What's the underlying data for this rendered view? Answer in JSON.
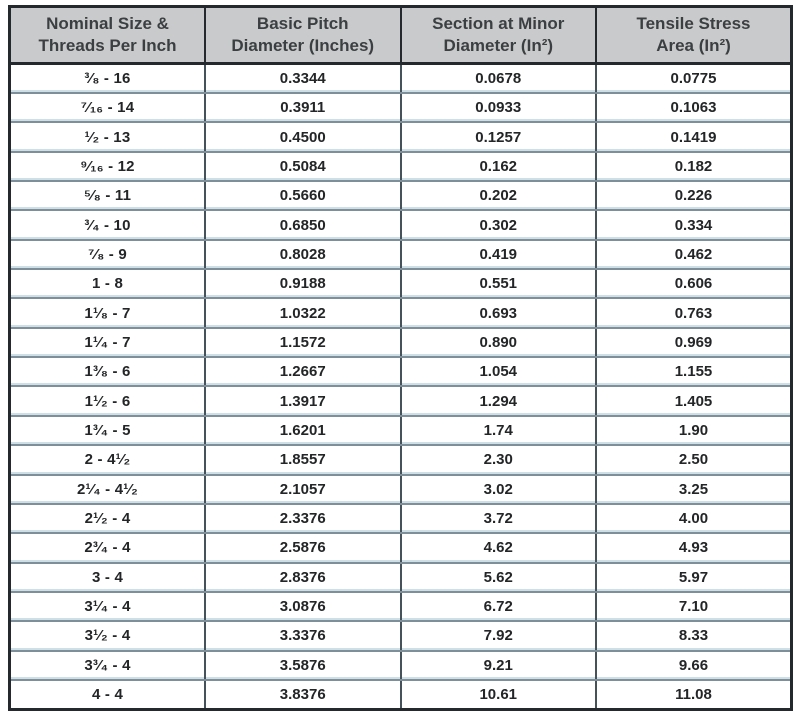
{
  "chart_data": {
    "type": "table",
    "columns": [
      "Nominal Size &\nThreads Per Inch",
      "Basic Pitch\nDiameter (Inches)",
      "Section at Minor\nDiameter (In²)",
      "Tensile Stress\nArea (In²)"
    ],
    "rows": [
      [
        "³⁄₈ - 16",
        "0.3344",
        "0.0678",
        "0.0775"
      ],
      [
        "⁷⁄₁₆ - 14",
        "0.3911",
        "0.0933",
        "0.1063"
      ],
      [
        "¹⁄₂ - 13",
        "0.4500",
        "0.1257",
        "0.1419"
      ],
      [
        "⁹⁄₁₆ - 12",
        "0.5084",
        "0.162",
        "0.182"
      ],
      [
        "⁵⁄₈ - 11",
        "0.5660",
        "0.202",
        "0.226"
      ],
      [
        "³⁄₄ - 10",
        "0.6850",
        "0.302",
        "0.334"
      ],
      [
        "⁷⁄₈ - 9",
        "0.8028",
        "0.419",
        "0.462"
      ],
      [
        "1 - 8",
        "0.9188",
        "0.551",
        "0.606"
      ],
      [
        "1¹⁄₈ - 7",
        "1.0322",
        "0.693",
        "0.763"
      ],
      [
        "1¹⁄₄ - 7",
        "1.1572",
        "0.890",
        "0.969"
      ],
      [
        "1³⁄₈ - 6",
        "1.2667",
        "1.054",
        "1.155"
      ],
      [
        "1¹⁄₂ - 6",
        "1.3917",
        "1.294",
        "1.405"
      ],
      [
        "1³⁄₄ - 5",
        "1.6201",
        "1.74",
        "1.90"
      ],
      [
        "2 - 4¹⁄₂",
        "1.8557",
        "2.30",
        "2.50"
      ],
      [
        "2¹⁄₄ - 4¹⁄₂",
        "2.1057",
        "3.02",
        "3.25"
      ],
      [
        "2¹⁄₂ - 4",
        "2.3376",
        "3.72",
        "4.00"
      ],
      [
        "2³⁄₄ - 4",
        "2.5876",
        "4.62",
        "4.93"
      ],
      [
        "3 - 4",
        "2.8376",
        "5.62",
        "5.97"
      ],
      [
        "3¹⁄₄ - 4",
        "3.0876",
        "6.72",
        "7.10"
      ],
      [
        "3¹⁄₂ - 4",
        "3.3376",
        "7.92",
        "8.33"
      ],
      [
        "3³⁄₄ - 4",
        "3.5876",
        "9.21",
        "9.66"
      ],
      [
        "4 - 4",
        "3.8376",
        "10.61",
        "11.08"
      ]
    ]
  },
  "colors": {
    "header_bg": "#c9cacb",
    "header_text": "#3c3f42",
    "border_dark": "#23292c",
    "col_divider": "#45525a",
    "row_line_dark": "#7e8f99",
    "row_line_light": "#cfdfe7",
    "cell_text": "#232527",
    "page_bg": "#ffffff"
  }
}
